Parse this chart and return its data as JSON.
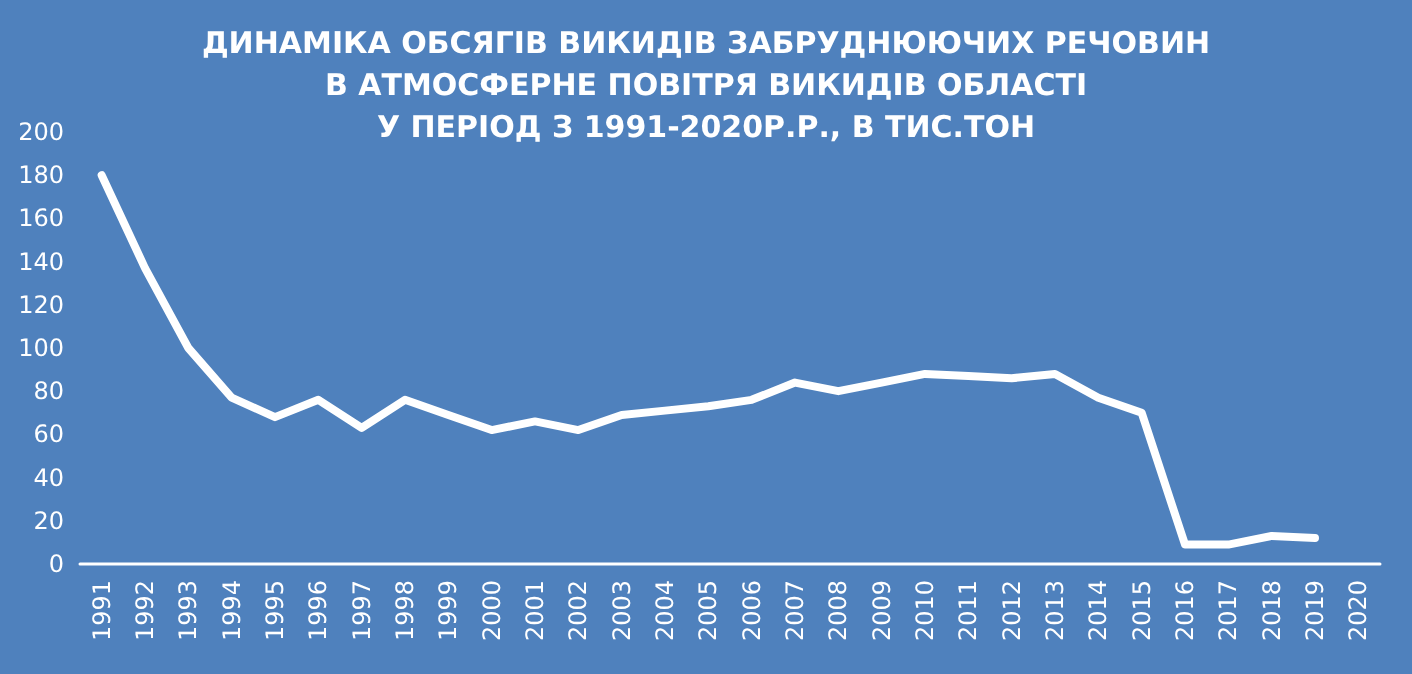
{
  "chart_data": {
    "type": "line",
    "title": "ДИНАМІКА ОБСЯГІВ ВИКИДІВ ЗАБРУДНЮЮЧИХ РЕЧОВИН\nВ АТМОСФЕРНЕ ПОВІТРЯ ВИКИДІВ ОБЛАСТІ\nУ ПЕРІОД З 1991-2020Р.Р., В ТИС.ТОН",
    "categories": [
      "1991",
      "1992",
      "1993",
      "1994",
      "1995",
      "1996",
      "1997",
      "1998",
      "1999",
      "2000",
      "2001",
      "2002",
      "2003",
      "2004",
      "2005",
      "2006",
      "2007",
      "2008",
      "2009",
      "2010",
      "2011",
      "2012",
      "2013",
      "2014",
      "2015",
      "2016",
      "2017",
      "2018",
      "2019",
      "2020"
    ],
    "series": [
      {
        "color": "#ffffff",
        "values": [
          180,
          137,
          100,
          77,
          68,
          76,
          63,
          76,
          69,
          62,
          66,
          62,
          69,
          71,
          73,
          76,
          84,
          80,
          84,
          88,
          87,
          86,
          88,
          77,
          70,
          9,
          9,
          13,
          12,
          null
        ]
      }
    ],
    "ylim": [
      0,
      200
    ],
    "yticks": [
      0,
      20,
      40,
      60,
      80,
      100,
      120,
      140,
      160,
      180,
      200
    ],
    "grid": false,
    "marker": "none",
    "line_style": "solid"
  }
}
